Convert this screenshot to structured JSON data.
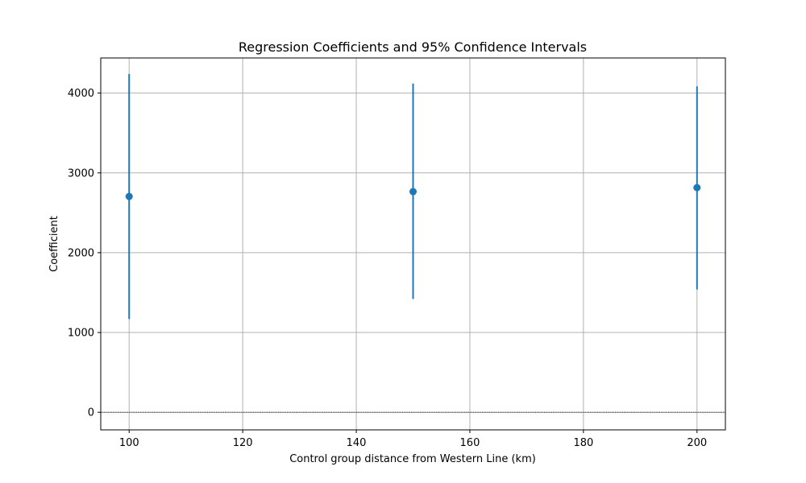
{
  "chart_data": {
    "type": "scatter",
    "title": "Regression Coefficients and 95% Confidence Intervals",
    "xlabel": "Control group distance from Western Line (km)",
    "ylabel": "Coefficient",
    "xlim": [
      95,
      205
    ],
    "ylim": [
      -220,
      4440
    ],
    "xticks": [
      100,
      120,
      140,
      160,
      180,
      200
    ],
    "yticks": [
      0,
      1000,
      2000,
      3000,
      4000
    ],
    "grid": true,
    "reference_line": 0,
    "color": "#1f77b4",
    "points": [
      {
        "x": 100,
        "y": 2705,
        "ci_low": 1170,
        "ci_high": 4240
      },
      {
        "x": 150,
        "y": 2765,
        "ci_low": 1420,
        "ci_high": 4120
      },
      {
        "x": 200,
        "y": 2815,
        "ci_low": 1540,
        "ci_high": 4085
      }
    ]
  }
}
